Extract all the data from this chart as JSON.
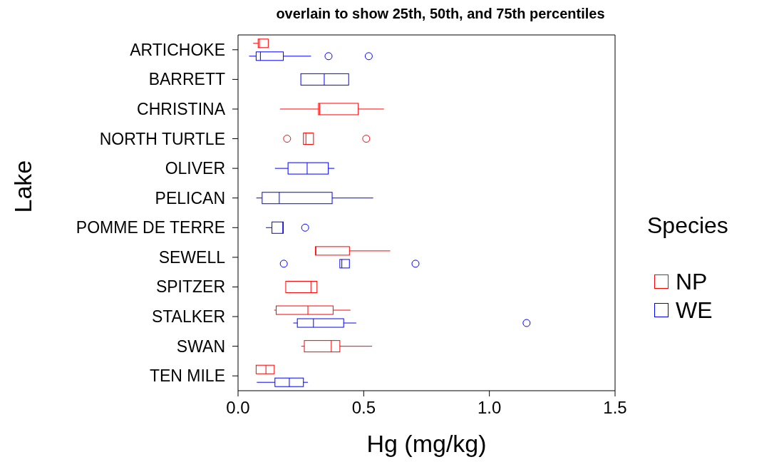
{
  "chart_data": {
    "type": "box",
    "orientation": "horizontal",
    "title": "overlain to show 25th, 50th, and 75th percentiles",
    "xlabel": "Hg (mg/kg)",
    "ylabel": "Lake",
    "legend_title": "Species",
    "legend": "right",
    "categories": [
      "ARTICHOKE",
      "BARRETT",
      "CHRISTINA",
      "NORTH TURTLE",
      "OLIVER",
      "PELICAN",
      "POMME DE TERRE",
      "SEWELL",
      "SPITZER",
      "STALKER",
      "SWAN",
      "TEN MILE"
    ],
    "xlim": [
      0,
      1.5
    ],
    "xticks": [
      {
        "value": 0,
        "label": "0.0"
      },
      0.5,
      {
        "value": 1,
        "label": "1.0"
      },
      1.5
    ],
    "series": [
      {
        "name": "NP",
        "color": "#ff0000",
        "boxes": [
          {
            "low": 0.06,
            "q1": 0.08,
            "median": 0.085,
            "q3": 0.12,
            "high": 0.12
          },
          null,
          {
            "low": 0.167,
            "q1": 0.32,
            "median": 0.325,
            "q3": 0.478,
            "high": 0.58
          },
          {
            "low": 0.26,
            "q1": 0.26,
            "median": 0.27,
            "q3": 0.3,
            "high": 0.3,
            "outliers": [
              0.195,
              0.51
            ]
          },
          null,
          null,
          null,
          {
            "low": 0.308,
            "q1": 0.308,
            "median": 0.31,
            "q3": 0.443,
            "high": 0.605
          },
          {
            "low": 0.19,
            "q1": 0.19,
            "median": 0.29,
            "q3": 0.314,
            "high": 0.314
          },
          {
            "low": 0.144,
            "q1": 0.152,
            "median": 0.278,
            "q3": 0.378,
            "high": 0.447
          },
          {
            "low": 0.252,
            "q1": 0.264,
            "median": 0.371,
            "q3": 0.405,
            "high": 0.533
          },
          {
            "low": 0.072,
            "q1": 0.072,
            "median": 0.111,
            "q3": 0.144,
            "high": 0.144
          }
        ]
      },
      {
        "name": "WE",
        "color": "#0000ff",
        "boxes": [
          {
            "low": 0.044,
            "q1": 0.072,
            "median": 0.089,
            "q3": 0.18,
            "high": 0.29,
            "outliers": [
              0.36,
              0.52
            ]
          },
          {
            "low": 0.25,
            "q1": 0.25,
            "median": 0.343,
            "q3": 0.44,
            "high": 0.44
          },
          null,
          null,
          {
            "low": 0.147,
            "q1": 0.199,
            "median": 0.275,
            "q3": 0.359,
            "high": 0.383
          },
          {
            "low": 0.073,
            "q1": 0.096,
            "median": 0.164,
            "q3": 0.374,
            "high": 0.537
          },
          {
            "low": 0.111,
            "q1": 0.135,
            "median": 0.178,
            "q3": 0.18,
            "high": 0.18,
            "outliers": [
              0.267
            ]
          },
          {
            "low": 0.405,
            "q1": 0.405,
            "median": 0.413,
            "q3": 0.443,
            "high": 0.443,
            "outliers": [
              0.182,
              0.706
            ]
          },
          null,
          {
            "low": 0.22,
            "q1": 0.236,
            "median": 0.3,
            "q3": 0.42,
            "high": 0.47,
            "outliers": [
              1.148
            ]
          },
          null,
          {
            "low": 0.075,
            "q1": 0.147,
            "median": 0.204,
            "q3": 0.26,
            "high": 0.278
          }
        ]
      }
    ]
  }
}
